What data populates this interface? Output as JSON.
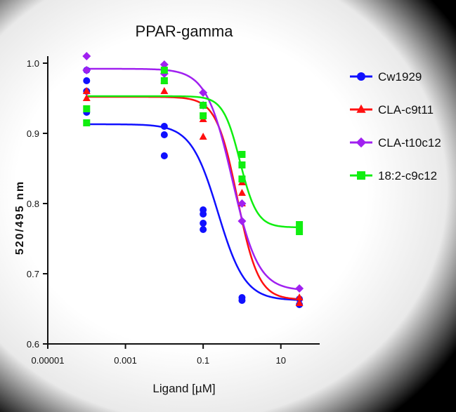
{
  "chart_data": {
    "type": "scatter",
    "title": "PPAR-gamma",
    "xlabel": "Ligand [µM]",
    "ylabel": "520/495 nm",
    "x_scale": "log",
    "xlim": [
      1e-05,
      100
    ],
    "ylim": [
      0.6,
      1.0
    ],
    "x_ticks": [
      {
        "value": 1e-05,
        "label": "0.00001"
      },
      {
        "value": 0.001,
        "label": "0.001"
      },
      {
        "value": 0.1,
        "label": "0.1"
      },
      {
        "value": 10,
        "label": "10"
      }
    ],
    "y_ticks": [
      {
        "value": 0.6,
        "label": "0.6"
      },
      {
        "value": 0.7,
        "label": "0.7"
      },
      {
        "value": 0.8,
        "label": "0.8"
      },
      {
        "value": 0.9,
        "label": "0.9"
      },
      {
        "value": 1.0,
        "label": "1.0"
      }
    ],
    "legend_position": "right",
    "series": [
      {
        "name": "Cw1929",
        "color": "#1010ff",
        "marker": "circle",
        "x": [
          0.0001,
          0.0001,
          0.0001,
          0.0001,
          0.01,
          0.01,
          0.01,
          0.1,
          0.1,
          0.1,
          0.1,
          1,
          1,
          30,
          30
        ],
        "y": [
          0.99,
          0.975,
          0.96,
          0.93,
          0.91,
          0.898,
          0.868,
          0.791,
          0.785,
          0.772,
          0.763,
          0.666,
          0.662,
          0.664,
          0.656
        ],
        "fit": {
          "top": 0.913,
          "bottom": 0.662,
          "logEC50": -0.62,
          "hill": 1.25
        }
      },
      {
        "name": "CLA-c9t11",
        "color": "#ff1010",
        "marker": "triangle",
        "x": [
          0.0001,
          0.0001,
          0.01,
          0.01,
          0.1,
          0.1,
          0.1,
          1,
          1,
          1,
          30,
          30
        ],
        "y": [
          0.96,
          0.95,
          0.975,
          0.96,
          0.94,
          0.92,
          0.895,
          0.83,
          0.815,
          0.8,
          0.666,
          0.658
        ],
        "fit": {
          "top": 0.952,
          "bottom": 0.663,
          "logEC50": -0.12,
          "hill": 1.6
        }
      },
      {
        "name": "CLA-t10c12",
        "color": "#a020f0",
        "marker": "diamond",
        "x": [
          0.0001,
          0.0001,
          0.01,
          0.01,
          0.1,
          0.1,
          1,
          1,
          30
        ],
        "y": [
          1.01,
          0.99,
          0.998,
          0.985,
          0.958,
          0.94,
          0.8,
          0.775,
          0.679
        ],
        "fit": {
          "top": 0.992,
          "bottom": 0.676,
          "logEC50": -0.25,
          "hill": 1.3
        }
      },
      {
        "name": "18:2-c9c12",
        "color": "#10ee10",
        "marker": "square",
        "x": [
          0.0001,
          0.0001,
          0.01,
          0.01,
          0.1,
          0.1,
          1,
          1,
          1,
          30,
          30
        ],
        "y": [
          0.935,
          0.915,
          0.99,
          0.975,
          0.94,
          0.925,
          0.87,
          0.855,
          0.835,
          0.77,
          0.76
        ],
        "fit": {
          "top": 0.953,
          "bottom": 0.766,
          "logEC50": -0.05,
          "hill": 2.0
        }
      }
    ]
  }
}
